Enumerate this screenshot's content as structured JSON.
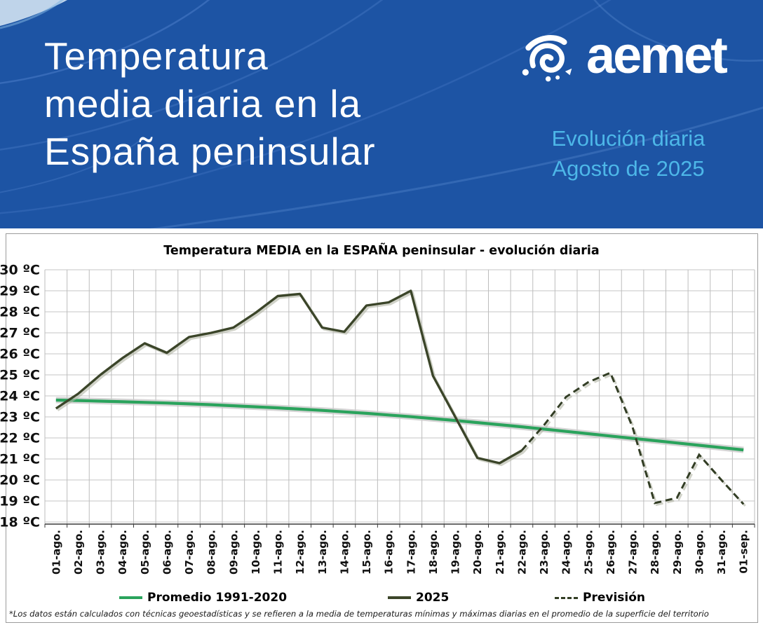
{
  "header": {
    "title_lines": [
      "Temperatura",
      "media diaria en la",
      "España peninsular"
    ],
    "logo_text": "aemet",
    "subtitle_line1": "Evolución diaria",
    "subtitle_line2": "Agosto de 2025",
    "bg_color": "#1d54a4",
    "subtitle_color": "#4db7e8"
  },
  "chart": {
    "footnote": "*Los datos están calculados con técnicas geoestadísticas y se refieren a la media de temperaturas mínimas y máximas diarias en el promedio de la superficie del territorio"
  },
  "chart_data": {
    "type": "line",
    "title": "Temperatura MEDIA en la ESPAÑA peninsular - evolución diaria",
    "categories": [
      "01-ago.",
      "02-ago.",
      "03-ago.",
      "04-ago.",
      "05-ago.",
      "06-ago.",
      "07-ago.",
      "08-ago.",
      "09-ago.",
      "10-ago.",
      "11-ago.",
      "12-ago.",
      "13-ago.",
      "14-ago.",
      "15-ago.",
      "16-ago.",
      "17-ago.",
      "18-ago.",
      "19-ago.",
      "20-ago.",
      "21-ago.",
      "22-ago.",
      "23-ago.",
      "24-ago.",
      "25-ago.",
      "26-ago.",
      "27-ago.",
      "28-ago.",
      "29-ago.",
      "30-ago.",
      "31-ago.",
      "01-sep."
    ],
    "ylim": [
      18,
      30
    ],
    "y_tick_step": 1,
    "y_unit": "ºC",
    "grid": true,
    "legend_position": "bottom",
    "grid_color": "#c5c5c5",
    "axis_color": "#3c3c3c",
    "series": [
      {
        "name": "Promedio 1991-2020",
        "style": "solid",
        "color": "#2aa35c",
        "band_color": "#c9c9c9",
        "start_index": 0,
        "values": [
          23.8,
          23.78,
          23.75,
          23.72,
          23.69,
          23.66,
          23.62,
          23.58,
          23.53,
          23.48,
          23.43,
          23.37,
          23.31,
          23.24,
          23.17,
          23.09,
          23.01,
          22.92,
          22.83,
          22.73,
          22.63,
          22.53,
          22.42,
          22.31,
          22.2,
          22.09,
          21.98,
          21.87,
          21.76,
          21.65,
          21.54,
          21.43
        ]
      },
      {
        "name": "2025",
        "style": "solid",
        "color": "#3b4529",
        "start_index": 0,
        "values": [
          23.4,
          24.1,
          25.0,
          25.8,
          26.5,
          26.05,
          26.8,
          27.0,
          27.25,
          27.95,
          28.75,
          28.85,
          27.25,
          27.05,
          28.3,
          28.45,
          29.0,
          24.95,
          23.0,
          21.05,
          20.8,
          21.4
        ]
      },
      {
        "name": "Previsión",
        "style": "dashed",
        "color": "#323d24",
        "start_index": 21,
        "values": [
          21.4,
          22.6,
          23.95,
          24.65,
          25.1,
          22.5,
          18.9,
          19.15,
          21.2,
          20.0,
          18.85
        ]
      }
    ]
  }
}
